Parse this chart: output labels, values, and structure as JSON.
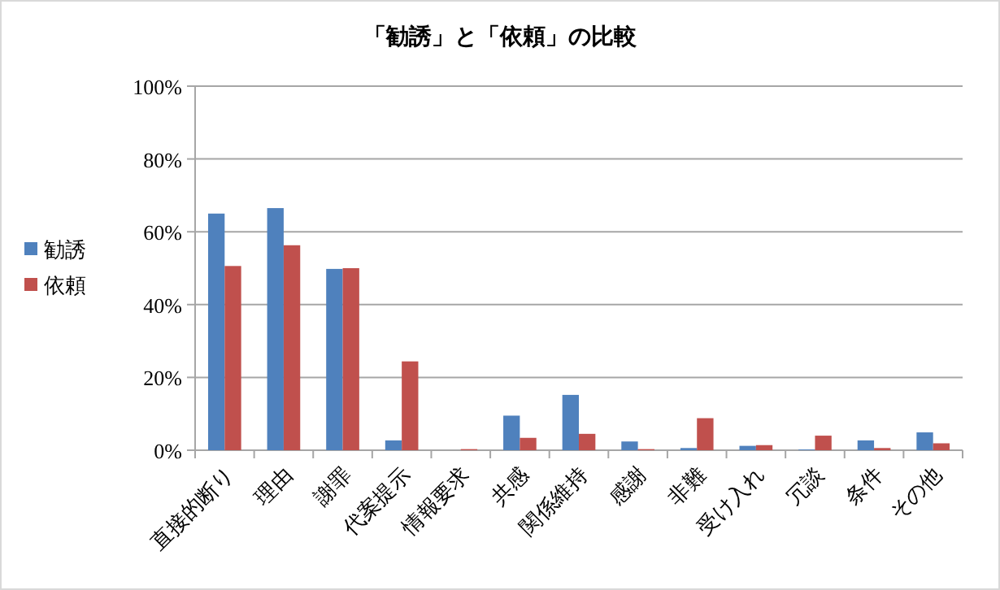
{
  "chart_data": {
    "type": "bar",
    "title": "「勧誘」と「依頼」の比較",
    "categories": [
      "直接的断り",
      "理由",
      "謝罪",
      "代案提示",
      "情報要求",
      "共感",
      "関係維持",
      "感謝",
      "非難",
      "受け入れ",
      "冗談",
      "条件",
      "その他"
    ],
    "series": [
      {
        "name": "勧誘",
        "color": "#4f81bd",
        "values": [
          65,
          66.5,
          49.8,
          2.7,
          0,
          9.5,
          15.2,
          2.4,
          0.6,
          1.2,
          0.2,
          2.7,
          4.9
        ]
      },
      {
        "name": "依頼",
        "color": "#c0504d",
        "values": [
          50.6,
          56.3,
          50,
          24.4,
          0.3,
          3.4,
          4.5,
          0.3,
          8.8,
          1.4,
          4,
          0.6,
          1.9
        ]
      }
    ],
    "ylim": [
      0,
      100
    ],
    "yticks": [
      {
        "value": 0,
        "label": "0%"
      },
      {
        "value": 20,
        "label": "20%"
      },
      {
        "value": 40,
        "label": "40%"
      },
      {
        "value": 60,
        "label": "60%"
      },
      {
        "value": 80,
        "label": "80%"
      },
      {
        "value": 100,
        "label": "100%"
      }
    ],
    "grid": "y",
    "legend": "left"
  }
}
